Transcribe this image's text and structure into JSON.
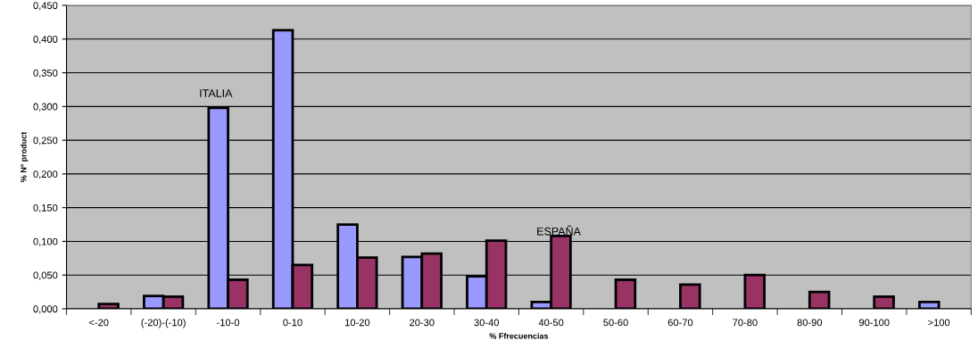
{
  "chart_data": {
    "type": "bar",
    "xlabel": "% Ffrecuencias",
    "ylabel": "% Nº product",
    "categories": [
      "<-20",
      "(-20)-(-10)",
      "-10-0",
      "0-10",
      "10-20",
      "20-30",
      "30-40",
      "40-50",
      "50-60",
      "60-70",
      "70-80",
      "80-90",
      "90-100",
      ">100"
    ],
    "series": [
      {
        "color": "#9999ff",
        "values": [
          null,
          0.019,
          0.298,
          0.413,
          0.125,
          0.077,
          0.048,
          0.01,
          null,
          null,
          null,
          null,
          null,
          0.01
        ]
      },
      {
        "color": "#993366",
        "values": [
          0.007,
          0.018,
          0.043,
          0.065,
          0.076,
          0.082,
          0.101,
          0.108,
          0.043,
          0.036,
          0.05,
          0.025,
          0.018,
          null
        ]
      }
    ],
    "annotations": [
      "ITALIA",
      "ESPAÑA"
    ],
    "ylim": [
      0,
      0.45
    ],
    "yticks": [
      {
        "value": 0,
        "label": "0,000"
      },
      {
        "value": 0.05,
        "label": "0,050"
      },
      {
        "value": 0.1,
        "label": "0,100"
      },
      {
        "value": 0.15,
        "label": "0,150"
      },
      {
        "value": 0.2,
        "label": "0,200"
      },
      {
        "value": 0.25,
        "label": "0,250"
      },
      {
        "value": 0.3,
        "label": "0,300"
      },
      {
        "value": 0.35,
        "label": "0,350"
      },
      {
        "value": 0.4,
        "label": "0,400"
      },
      {
        "value": 0.45,
        "label": "0,450"
      }
    ],
    "grid": "y"
  }
}
